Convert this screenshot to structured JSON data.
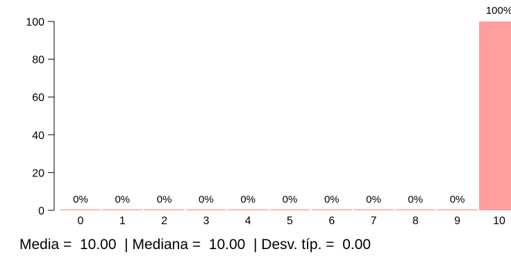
{
  "chart_data": {
    "type": "bar",
    "categories": [
      "0",
      "1",
      "2",
      "3",
      "4",
      "5",
      "6",
      "7",
      "8",
      "9",
      "10"
    ],
    "values": [
      0,
      0,
      0,
      0,
      0,
      0,
      0,
      0,
      0,
      0,
      100
    ],
    "data_labels": [
      "0%",
      "0%",
      "0%",
      "0%",
      "0%",
      "0%",
      "0%",
      "0%",
      "0%",
      "0%",
      "100%"
    ],
    "y_ticks": [
      0,
      20,
      40,
      60,
      80,
      100
    ],
    "ylim": [
      0,
      100
    ],
    "bar_color": "#ff9e9e",
    "grid": false
  },
  "stats_text": "Media =  10.00  | Mediana =  10.00  | Desv. típ. =  0.00"
}
